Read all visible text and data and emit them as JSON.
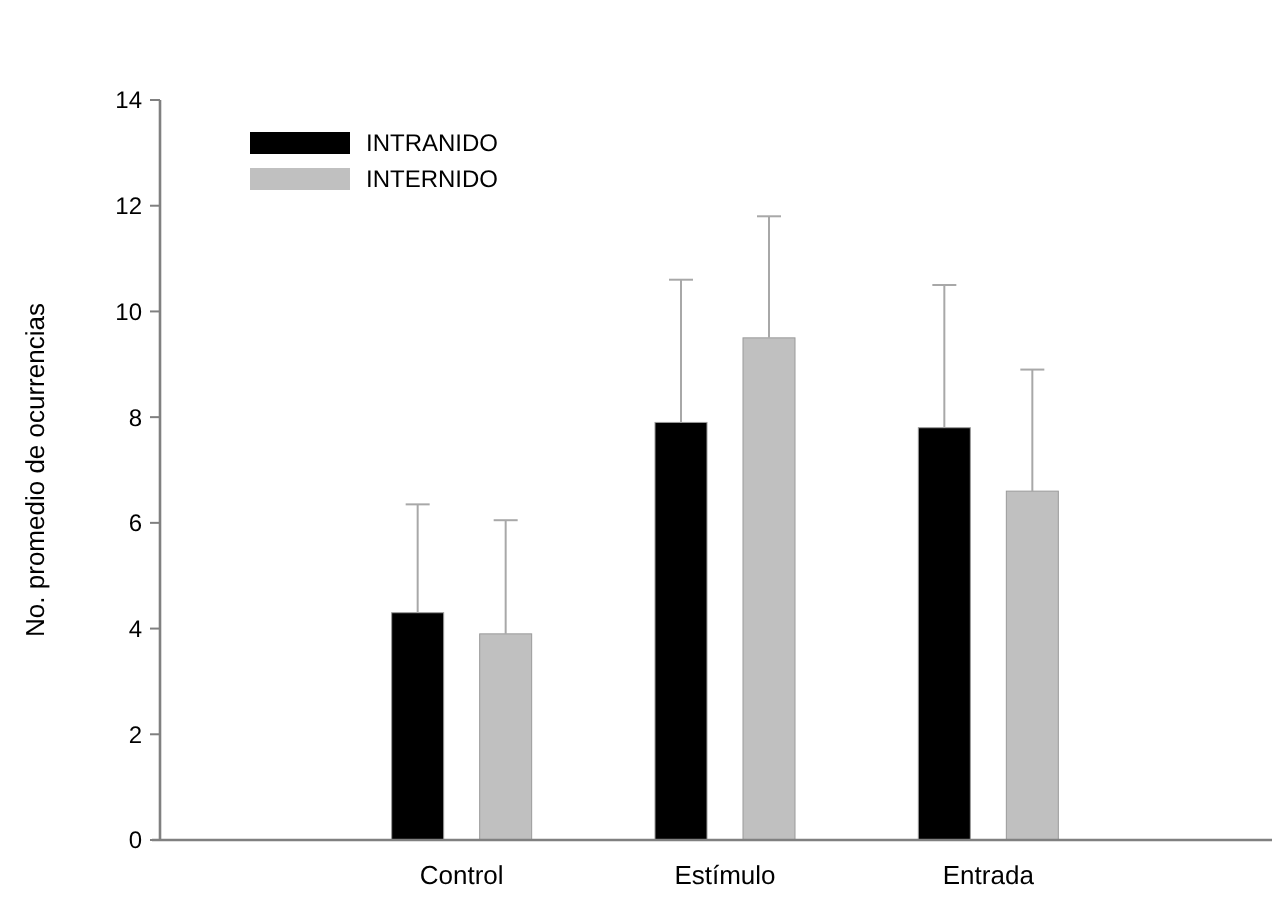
{
  "chart_data": {
    "type": "bar",
    "ylabel": "No. promedio de ocurrencias",
    "categories": [
      "Control",
      "Estímulo",
      "Entrada"
    ],
    "series": [
      {
        "name": "INTRANIDO",
        "color": "#000000",
        "values": [
          4.3,
          7.9,
          7.8
        ],
        "errors": [
          [
            4.3,
            6.35
          ],
          [
            7.9,
            10.6
          ],
          [
            7.8,
            10.5
          ]
        ]
      },
      {
        "name": "INTERNIDO",
        "color": "#c0c0c0",
        "values": [
          3.9,
          9.5,
          6.6
        ],
        "errors": [
          [
            3.9,
            6.05
          ],
          [
            9.5,
            11.8
          ],
          [
            6.6,
            8.9
          ]
        ]
      }
    ],
    "ylim": [
      0,
      14
    ],
    "yticks": [
      0,
      2,
      4,
      6,
      8,
      10,
      12,
      14
    ],
    "grid": false,
    "legend": "top left"
  }
}
